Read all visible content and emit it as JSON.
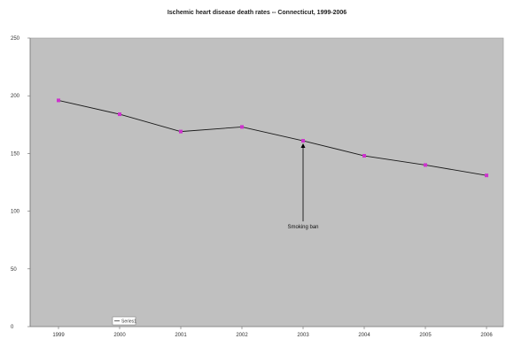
{
  "chart_data": {
    "type": "line",
    "title": "Ischemic heart disease death rates -- Connecticut, 1999-2006",
    "xlabel": "",
    "ylabel": "",
    "categories": [
      "1999",
      "2000",
      "2001",
      "2002",
      "2003",
      "2004",
      "2005",
      "2006"
    ],
    "series": [
      {
        "values": [
          196,
          184,
          169,
          173,
          161,
          148,
          140,
          131
        ]
      }
    ],
    "ylim": [
      0,
      250
    ],
    "yticks": [
      0,
      50,
      100,
      150,
      200,
      250
    ],
    "grid": false,
    "annotations": [
      {
        "text": "Smoking ban",
        "category": "2003",
        "value": 161
      }
    ],
    "legend": {
      "placement": "bottom-left",
      "entries": [
        "Series1"
      ]
    },
    "colors": {
      "plot_background": "#c0c0c0",
      "line": "#1a1a1a",
      "marker": "#cc33cc"
    }
  }
}
